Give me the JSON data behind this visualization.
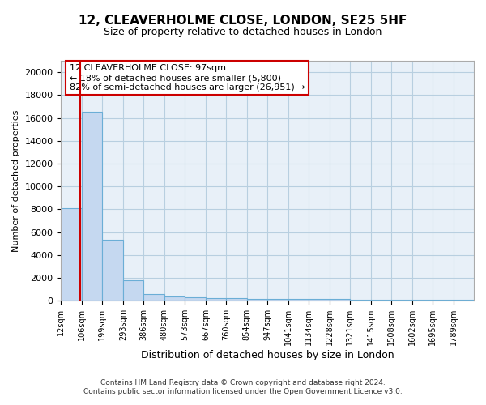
{
  "title": "12, CLEAVERHOLME CLOSE, LONDON, SE25 5HF",
  "subtitle": "Size of property relative to detached houses in London",
  "xlabel": "Distribution of detached houses by size in London",
  "ylabel": "Number of detached properties",
  "bar_color": "#c5d8f0",
  "bar_edge_color": "#6baed6",
  "background_color": "#e8f0f8",
  "property_size": 97,
  "annotation_line1": "12 CLEAVERHOLME CLOSE: 97sqm",
  "annotation_line2": "← 18% of detached houses are smaller (5,800)",
  "annotation_line3": "82% of semi-detached houses are larger (26,951) →",
  "footer_line1": "Contains HM Land Registry data © Crown copyright and database right 2024.",
  "footer_line2": "Contains public sector information licensed under the Open Government Licence v3.0.",
  "bin_edges": [
    12,
    106,
    199,
    293,
    386,
    480,
    573,
    667,
    760,
    854,
    947,
    1041,
    1134,
    1228,
    1321,
    1415,
    1508,
    1602,
    1695,
    1789,
    1882
  ],
  "bin_values": [
    8100,
    16500,
    5350,
    1800,
    600,
    350,
    300,
    250,
    200,
    180,
    160,
    150,
    140,
    130,
    120,
    110,
    100,
    95,
    90,
    85
  ],
  "ylim": [
    0,
    21000
  ],
  "yticks": [
    0,
    2000,
    4000,
    6000,
    8000,
    10000,
    12000,
    14000,
    16000,
    18000,
    20000
  ],
  "red_line_color": "#cc0000",
  "annotation_box_color": "#cc0000",
  "grid_color": "#b8cfe0",
  "title_fontsize": 11,
  "subtitle_fontsize": 9
}
